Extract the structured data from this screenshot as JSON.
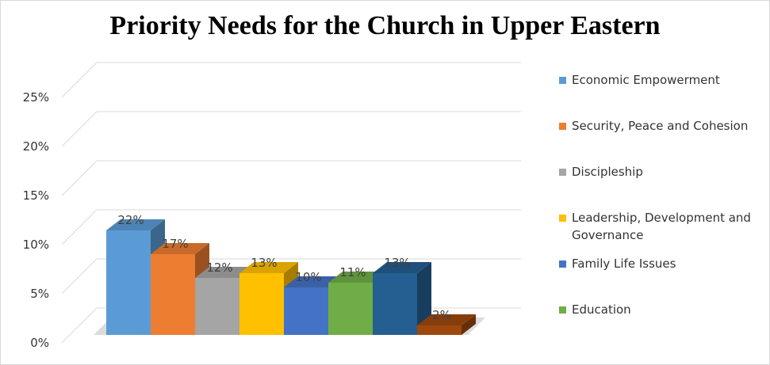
{
  "chart_data": {
    "type": "bar",
    "title": "Priority Needs for the Church in Upper Eastern",
    "categories": [
      "Economic Empowerment",
      "Security, Peace and Cohesion",
      "Discipleship",
      "Leadership, Development and Governance",
      "Family Life Issues",
      "Education",
      "",
      ""
    ],
    "values": [
      22,
      17,
      12,
      13,
      10,
      11,
      13,
      2
    ],
    "value_labels": [
      "22%",
      "17%",
      "12%",
      "13%",
      "10%",
      "11%",
      "13%",
      "2%"
    ],
    "colors": [
      "#5b9bd5",
      "#ed7d31",
      "#a5a5a5",
      "#ffc000",
      "#4472c4",
      "#70ad47",
      "#255e91",
      "#9e480e"
    ],
    "y_ticks": [
      "0%",
      "5%",
      "10%",
      "15%",
      "20%",
      "25%"
    ],
    "ylim": [
      0,
      25
    ],
    "grid": true,
    "legend_position": "right",
    "style": "3d-columns"
  },
  "legend": {
    "items": [
      {
        "label": "Economic Empowerment",
        "color": "#5b9bd5"
      },
      {
        "label": "Security, Peace and Cohesion",
        "color": "#ed7d31"
      },
      {
        "label": "Discipleship",
        "color": "#a5a5a5"
      },
      {
        "label": "Leadership, Development and Governance",
        "color": "#ffc000"
      },
      {
        "label": "Family Life Issues",
        "color": "#4472c4"
      },
      {
        "label": "Education",
        "color": "#70ad47"
      }
    ]
  }
}
